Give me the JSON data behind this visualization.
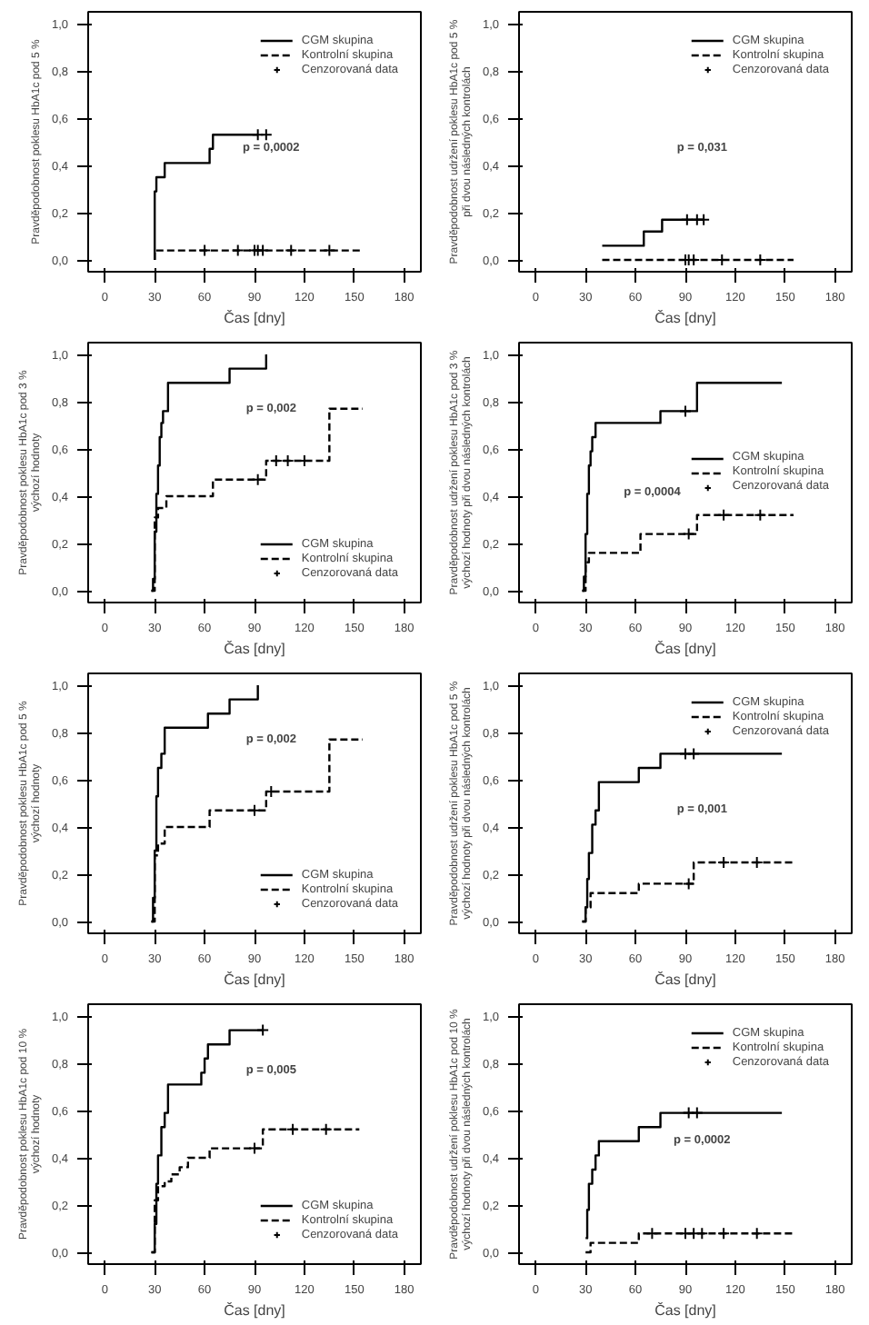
{
  "chart_data": [
    {
      "type": "step",
      "ylabel": "Pravděpodobnost poklesu HbA1c pod 5 %",
      "xlabel": "Čas [dny]",
      "xlim": [
        -10,
        190
      ],
      "ylim": [
        -0.05,
        1.05
      ],
      "xticks": [
        0,
        30,
        60,
        90,
        120,
        150,
        180
      ],
      "yticks": [
        {
          "value": 0,
          "label": "0,0"
        },
        {
          "value": 0.2,
          "label": "0,2"
        },
        {
          "value": 0.4,
          "label": "0,4"
        },
        {
          "value": 0.6,
          "label": "0,6"
        },
        {
          "value": 0.8,
          "label": "0,8"
        },
        {
          "value": 1,
          "label": "1,0"
        }
      ],
      "grid": false,
      "legend": "top right",
      "annotations": [
        "p = 0,0002"
      ],
      "series": [
        {
          "name": "CGM skupina",
          "color": "#000000",
          "line_style": "solid",
          "x": [
            30,
            30,
            31,
            36,
            63,
            65,
            92
          ],
          "values": [
            0,
            0.29,
            0.35,
            0.41,
            0.47,
            0.53,
            0.53
          ]
        },
        {
          "name": "Kontrolní skupina",
          "color": "#000000",
          "line_style": "dashed",
          "x": [
            30,
            30,
            155
          ],
          "values": [
            0,
            0.04,
            0.04
          ]
        },
        {
          "name": "Cenzorovaná data",
          "type": "scatter",
          "marker": "cross",
          "color": "#000000",
          "x": [
            92,
            97,
            60,
            80,
            90,
            92,
            95,
            112,
            135
          ],
          "values": [
            0.53,
            0.53,
            0.04,
            0.04,
            0.04,
            0.04,
            0.04,
            0.04,
            0.04
          ]
        }
      ]
    },
    {
      "type": "step",
      "ylabel": "Pravděpodobnost udržení poklesu HbA1c pod 5 %\npři dvou následných kontrolách",
      "xlabel": "Čas [dny]",
      "xlim": [
        -10,
        190
      ],
      "ylim": [
        -0.05,
        1.05
      ],
      "xticks": [
        0,
        30,
        60,
        90,
        120,
        150,
        180
      ],
      "yticks": [
        {
          "value": 0,
          "label": "0,0"
        },
        {
          "value": 0.2,
          "label": "0,2"
        },
        {
          "value": 0.4,
          "label": "0,4"
        },
        {
          "value": 0.6,
          "label": "0,6"
        },
        {
          "value": 0.8,
          "label": "0,8"
        },
        {
          "value": 1,
          "label": "1,0"
        }
      ],
      "grid": false,
      "legend": "top right",
      "annotations": [
        "p = 0,031"
      ],
      "series": [
        {
          "name": "CGM skupina",
          "color": "#000000",
          "line_style": "solid",
          "x": [
            40,
            65,
            76,
            101
          ],
          "values": [
            0.06,
            0.12,
            0.17,
            0.17
          ]
        },
        {
          "name": "Kontrolní skupina",
          "color": "#000000",
          "line_style": "dashed",
          "x": [
            40,
            155
          ],
          "values": [
            0,
            0
          ]
        },
        {
          "name": "Cenzorovaná data",
          "type": "scatter",
          "marker": "cross",
          "color": "#000000",
          "x": [
            91,
            97,
            101,
            90,
            92,
            95,
            112,
            135
          ],
          "values": [
            0.17,
            0.17,
            0.17,
            0,
            0,
            0,
            0,
            0
          ]
        }
      ]
    },
    {
      "type": "step",
      "ylabel": "Pravděpodobnost poklesu HbA1c pod 3 %\nvýchozí hodnoty",
      "xlabel": "Čas [dny]",
      "xlim": [
        -10,
        190
      ],
      "ylim": [
        -0.05,
        1.05
      ],
      "xticks": [
        0,
        30,
        60,
        90,
        120,
        150,
        180
      ],
      "yticks": [
        {
          "value": 0,
          "label": "0,0"
        },
        {
          "value": 0.2,
          "label": "0,2"
        },
        {
          "value": 0.4,
          "label": "0,4"
        },
        {
          "value": 0.6,
          "label": "0,6"
        },
        {
          "value": 0.8,
          "label": "0,8"
        },
        {
          "value": 1,
          "label": "1,0"
        }
      ],
      "grid": false,
      "legend": "bottom right",
      "annotations": [
        "p = 0,002"
      ],
      "series": [
        {
          "name": "CGM skupina",
          "color": "#000000",
          "line_style": "solid",
          "x": [
            28,
            29,
            30,
            31,
            32,
            33,
            34,
            35,
            38,
            75,
            97,
            97
          ],
          "values": [
            0,
            0.05,
            0.25,
            0.41,
            0.53,
            0.65,
            0.71,
            0.76,
            0.88,
            0.94,
            0.94,
            1.0
          ]
        },
        {
          "name": "Kontrolní skupina",
          "color": "#000000",
          "line_style": "dashed",
          "x": [
            28,
            30,
            32,
            37,
            60,
            65,
            93,
            97,
            135,
            155
          ],
          "values": [
            0,
            0.31,
            0.35,
            0.4,
            0.4,
            0.47,
            0.47,
            0.55,
            0.77,
            0.77
          ]
        },
        {
          "name": "Cenzorovaná data",
          "type": "scatter",
          "marker": "cross",
          "color": "#000000",
          "x": [
            92,
            103,
            110,
            120
          ],
          "values": [
            0.47,
            0.55,
            0.55,
            0.55
          ]
        }
      ]
    },
    {
      "type": "step",
      "ylabel": "Pravděpodobnost udržení poklesu HbA1c pod 3 %\nvýchozí hodnoty při dvou následných kontrolách",
      "xlabel": "Čas [dny]",
      "xlim": [
        -10,
        190
      ],
      "ylim": [
        -0.05,
        1.05
      ],
      "xticks": [
        0,
        30,
        60,
        90,
        120,
        150,
        180
      ],
      "yticks": [
        {
          "value": 0,
          "label": "0,0"
        },
        {
          "value": 0.2,
          "label": "0,2"
        },
        {
          "value": 0.4,
          "label": "0,4"
        },
        {
          "value": 0.6,
          "label": "0,6"
        },
        {
          "value": 0.8,
          "label": "0,8"
        },
        {
          "value": 1,
          "label": "1,0"
        }
      ],
      "grid": false,
      "legend": "right",
      "annotations": [
        "p = 0,0004"
      ],
      "series": [
        {
          "name": "CGM skupina",
          "color": "#000000",
          "line_style": "solid",
          "x": [
            28,
            29,
            30,
            31,
            32,
            33,
            34,
            36,
            75,
            97,
            148
          ],
          "values": [
            0,
            0.06,
            0.24,
            0.41,
            0.53,
            0.59,
            0.65,
            0.71,
            0.76,
            0.88,
            0.88
          ]
        },
        {
          "name": "Kontrolní skupina",
          "color": "#000000",
          "line_style": "dashed",
          "x": [
            28,
            30,
            32,
            60,
            63,
            97,
            155
          ],
          "values": [
            0,
            0.12,
            0.16,
            0.16,
            0.24,
            0.32,
            0.32
          ]
        },
        {
          "name": "Cenzorovaná data",
          "type": "scatter",
          "marker": "cross",
          "color": "#000000",
          "x": [
            90,
            92,
            113,
            135
          ],
          "values": [
            0.76,
            0.24,
            0.32,
            0.32
          ]
        }
      ]
    },
    {
      "type": "step",
      "ylabel": "Pravděpodobnost poklesu HbA1c pod 5 %\nvýchozí hodnoty",
      "xlabel": "Čas [dny]",
      "xlim": [
        -10,
        190
      ],
      "ylim": [
        -0.05,
        1.05
      ],
      "xticks": [
        0,
        30,
        60,
        90,
        120,
        150,
        180
      ],
      "yticks": [
        {
          "value": 0,
          "label": "0,0"
        },
        {
          "value": 0.2,
          "label": "0,2"
        },
        {
          "value": 0.4,
          "label": "0,4"
        },
        {
          "value": 0.6,
          "label": "0,6"
        },
        {
          "value": 0.8,
          "label": "0,8"
        },
        {
          "value": 1,
          "label": "1,0"
        }
      ],
      "grid": false,
      "legend": "bottom right",
      "annotations": [
        "p = 0,002"
      ],
      "series": [
        {
          "name": "CGM skupina",
          "color": "#000000",
          "line_style": "solid",
          "x": [
            28,
            29,
            30,
            31,
            32,
            34,
            36,
            62,
            75,
            92,
            92
          ],
          "values": [
            0,
            0.1,
            0.3,
            0.53,
            0.65,
            0.71,
            0.82,
            0.88,
            0.94,
            0.94,
            1.0
          ]
        },
        {
          "name": "Kontrolní skupina",
          "color": "#000000",
          "line_style": "dashed",
          "x": [
            28,
            30,
            32,
            36,
            60,
            63,
            93,
            97,
            135,
            155
          ],
          "values": [
            0,
            0.28,
            0.33,
            0.4,
            0.4,
            0.47,
            0.47,
            0.55,
            0.77,
            0.77
          ]
        },
        {
          "name": "Cenzorovaná data",
          "type": "scatter",
          "marker": "cross",
          "color": "#000000",
          "x": [
            90,
            100
          ],
          "values": [
            0.47,
            0.55
          ]
        }
      ]
    },
    {
      "type": "step",
      "ylabel": "Pravděpodobnost udržení poklesu HbA1c pod 5 %\nvýchozí hodnoty při dvou následných kontrolách",
      "xlabel": "Čas [dny]",
      "xlim": [
        -10,
        190
      ],
      "ylim": [
        -0.05,
        1.05
      ],
      "xticks": [
        0,
        30,
        60,
        90,
        120,
        150,
        180
      ],
      "yticks": [
        {
          "value": 0,
          "label": "0,0"
        },
        {
          "value": 0.2,
          "label": "0,2"
        },
        {
          "value": 0.4,
          "label": "0,4"
        },
        {
          "value": 0.6,
          "label": "0,6"
        },
        {
          "value": 0.8,
          "label": "0,8"
        },
        {
          "value": 1,
          "label": "1,0"
        }
      ],
      "grid": false,
      "legend": "top right",
      "annotations": [
        "p = 0,001"
      ],
      "series": [
        {
          "name": "CGM skupina",
          "color": "#000000",
          "line_style": "solid",
          "x": [
            28,
            30,
            31,
            32,
            34,
            36,
            38,
            62,
            75,
            148
          ],
          "values": [
            0,
            0.06,
            0.18,
            0.29,
            0.41,
            0.47,
            0.59,
            0.65,
            0.71,
            0.71
          ]
        },
        {
          "name": "Kontrolní skupina",
          "color": "#000000",
          "line_style": "dashed",
          "x": [
            28,
            30,
            33,
            60,
            62,
            95,
            155
          ],
          "values": [
            0,
            0.06,
            0.12,
            0.12,
            0.16,
            0.25,
            0.25
          ]
        },
        {
          "name": "Cenzorovaná data",
          "type": "scatter",
          "marker": "cross",
          "color": "#000000",
          "x": [
            90,
            95,
            92,
            113,
            133
          ],
          "values": [
            0.71,
            0.71,
            0.16,
            0.25,
            0.25
          ]
        }
      ]
    },
    {
      "type": "step",
      "ylabel": "Pravděpodobnost poklesu HbA1c pod 10 %\nvýchozí hodnoty",
      "xlabel": "Čas [dny]",
      "xlim": [
        -10,
        190
      ],
      "ylim": [
        -0.05,
        1.05
      ],
      "xticks": [
        0,
        30,
        60,
        90,
        120,
        150,
        180
      ],
      "yticks": [
        {
          "value": 0,
          "label": "0,0"
        },
        {
          "value": 0.2,
          "label": "0,2"
        },
        {
          "value": 0.4,
          "label": "0,4"
        },
        {
          "value": 0.6,
          "label": "0,6"
        },
        {
          "value": 0.8,
          "label": "0,8"
        },
        {
          "value": 1,
          "label": "1,0"
        }
      ],
      "grid": false,
      "legend": "bottom right",
      "annotations": [
        "p = 0,005"
      ],
      "series": [
        {
          "name": "CGM skupina",
          "color": "#000000",
          "line_style": "solid",
          "x": [
            28,
            30,
            31,
            32,
            34,
            36,
            38,
            58,
            60,
            62,
            75,
            95
          ],
          "values": [
            0,
            0.12,
            0.29,
            0.41,
            0.53,
            0.59,
            0.71,
            0.76,
            0.82,
            0.88,
            0.94,
            0.94
          ]
        },
        {
          "name": "Kontrolní skupina",
          "color": "#000000",
          "line_style": "dashed",
          "x": [
            28,
            30,
            32,
            36,
            40,
            45,
            50,
            60,
            63,
            93,
            95,
            153
          ],
          "values": [
            0,
            0.22,
            0.28,
            0.3,
            0.33,
            0.36,
            0.4,
            0.4,
            0.44,
            0.44,
            0.52,
            0.52
          ]
        },
        {
          "name": "Cenzorovaná data",
          "type": "scatter",
          "marker": "cross",
          "color": "#000000",
          "x": [
            95,
            90,
            113,
            133
          ],
          "values": [
            0.94,
            0.44,
            0.52,
            0.52
          ]
        }
      ]
    },
    {
      "type": "step",
      "ylabel": "Pravděpodobnost udržení poklesu HbA1c pod 10 %\nvýchozí hodnoty při dvou následných kontrolách",
      "xlabel": "Čas [dny]",
      "xlim": [
        -10,
        190
      ],
      "ylim": [
        -0.05,
        1.05
      ],
      "xticks": [
        0,
        30,
        60,
        90,
        120,
        150,
        180
      ],
      "yticks": [
        {
          "value": 0,
          "label": "0,0"
        },
        {
          "value": 0.2,
          "label": "0,2"
        },
        {
          "value": 0.4,
          "label": "0,4"
        },
        {
          "value": 0.6,
          "label": "0,6"
        },
        {
          "value": 0.8,
          "label": "0,8"
        },
        {
          "value": 1,
          "label": "1,0"
        }
      ],
      "grid": false,
      "legend": "top right",
      "annotations": [
        "p = 0,0002"
      ],
      "series": [
        {
          "name": "CGM skupina",
          "color": "#000000",
          "line_style": "solid",
          "x": [
            30,
            31,
            32,
            34,
            36,
            38,
            62,
            75,
            148
          ],
          "values": [
            0.06,
            0.18,
            0.29,
            0.35,
            0.41,
            0.47,
            0.53,
            0.59,
            0.59
          ]
        },
        {
          "name": "Kontrolní skupina",
          "color": "#000000",
          "line_style": "dashed",
          "x": [
            30,
            33,
            62,
            155
          ],
          "values": [
            0,
            0.04,
            0.08,
            0.08
          ]
        },
        {
          "name": "Cenzorovaná data",
          "type": "scatter",
          "marker": "cross",
          "color": "#000000",
          "x": [
            92,
            97,
            70,
            90,
            95,
            100,
            113,
            133
          ],
          "values": [
            0.59,
            0.59,
            0.08,
            0.08,
            0.08,
            0.08,
            0.08,
            0.08
          ]
        }
      ]
    }
  ]
}
